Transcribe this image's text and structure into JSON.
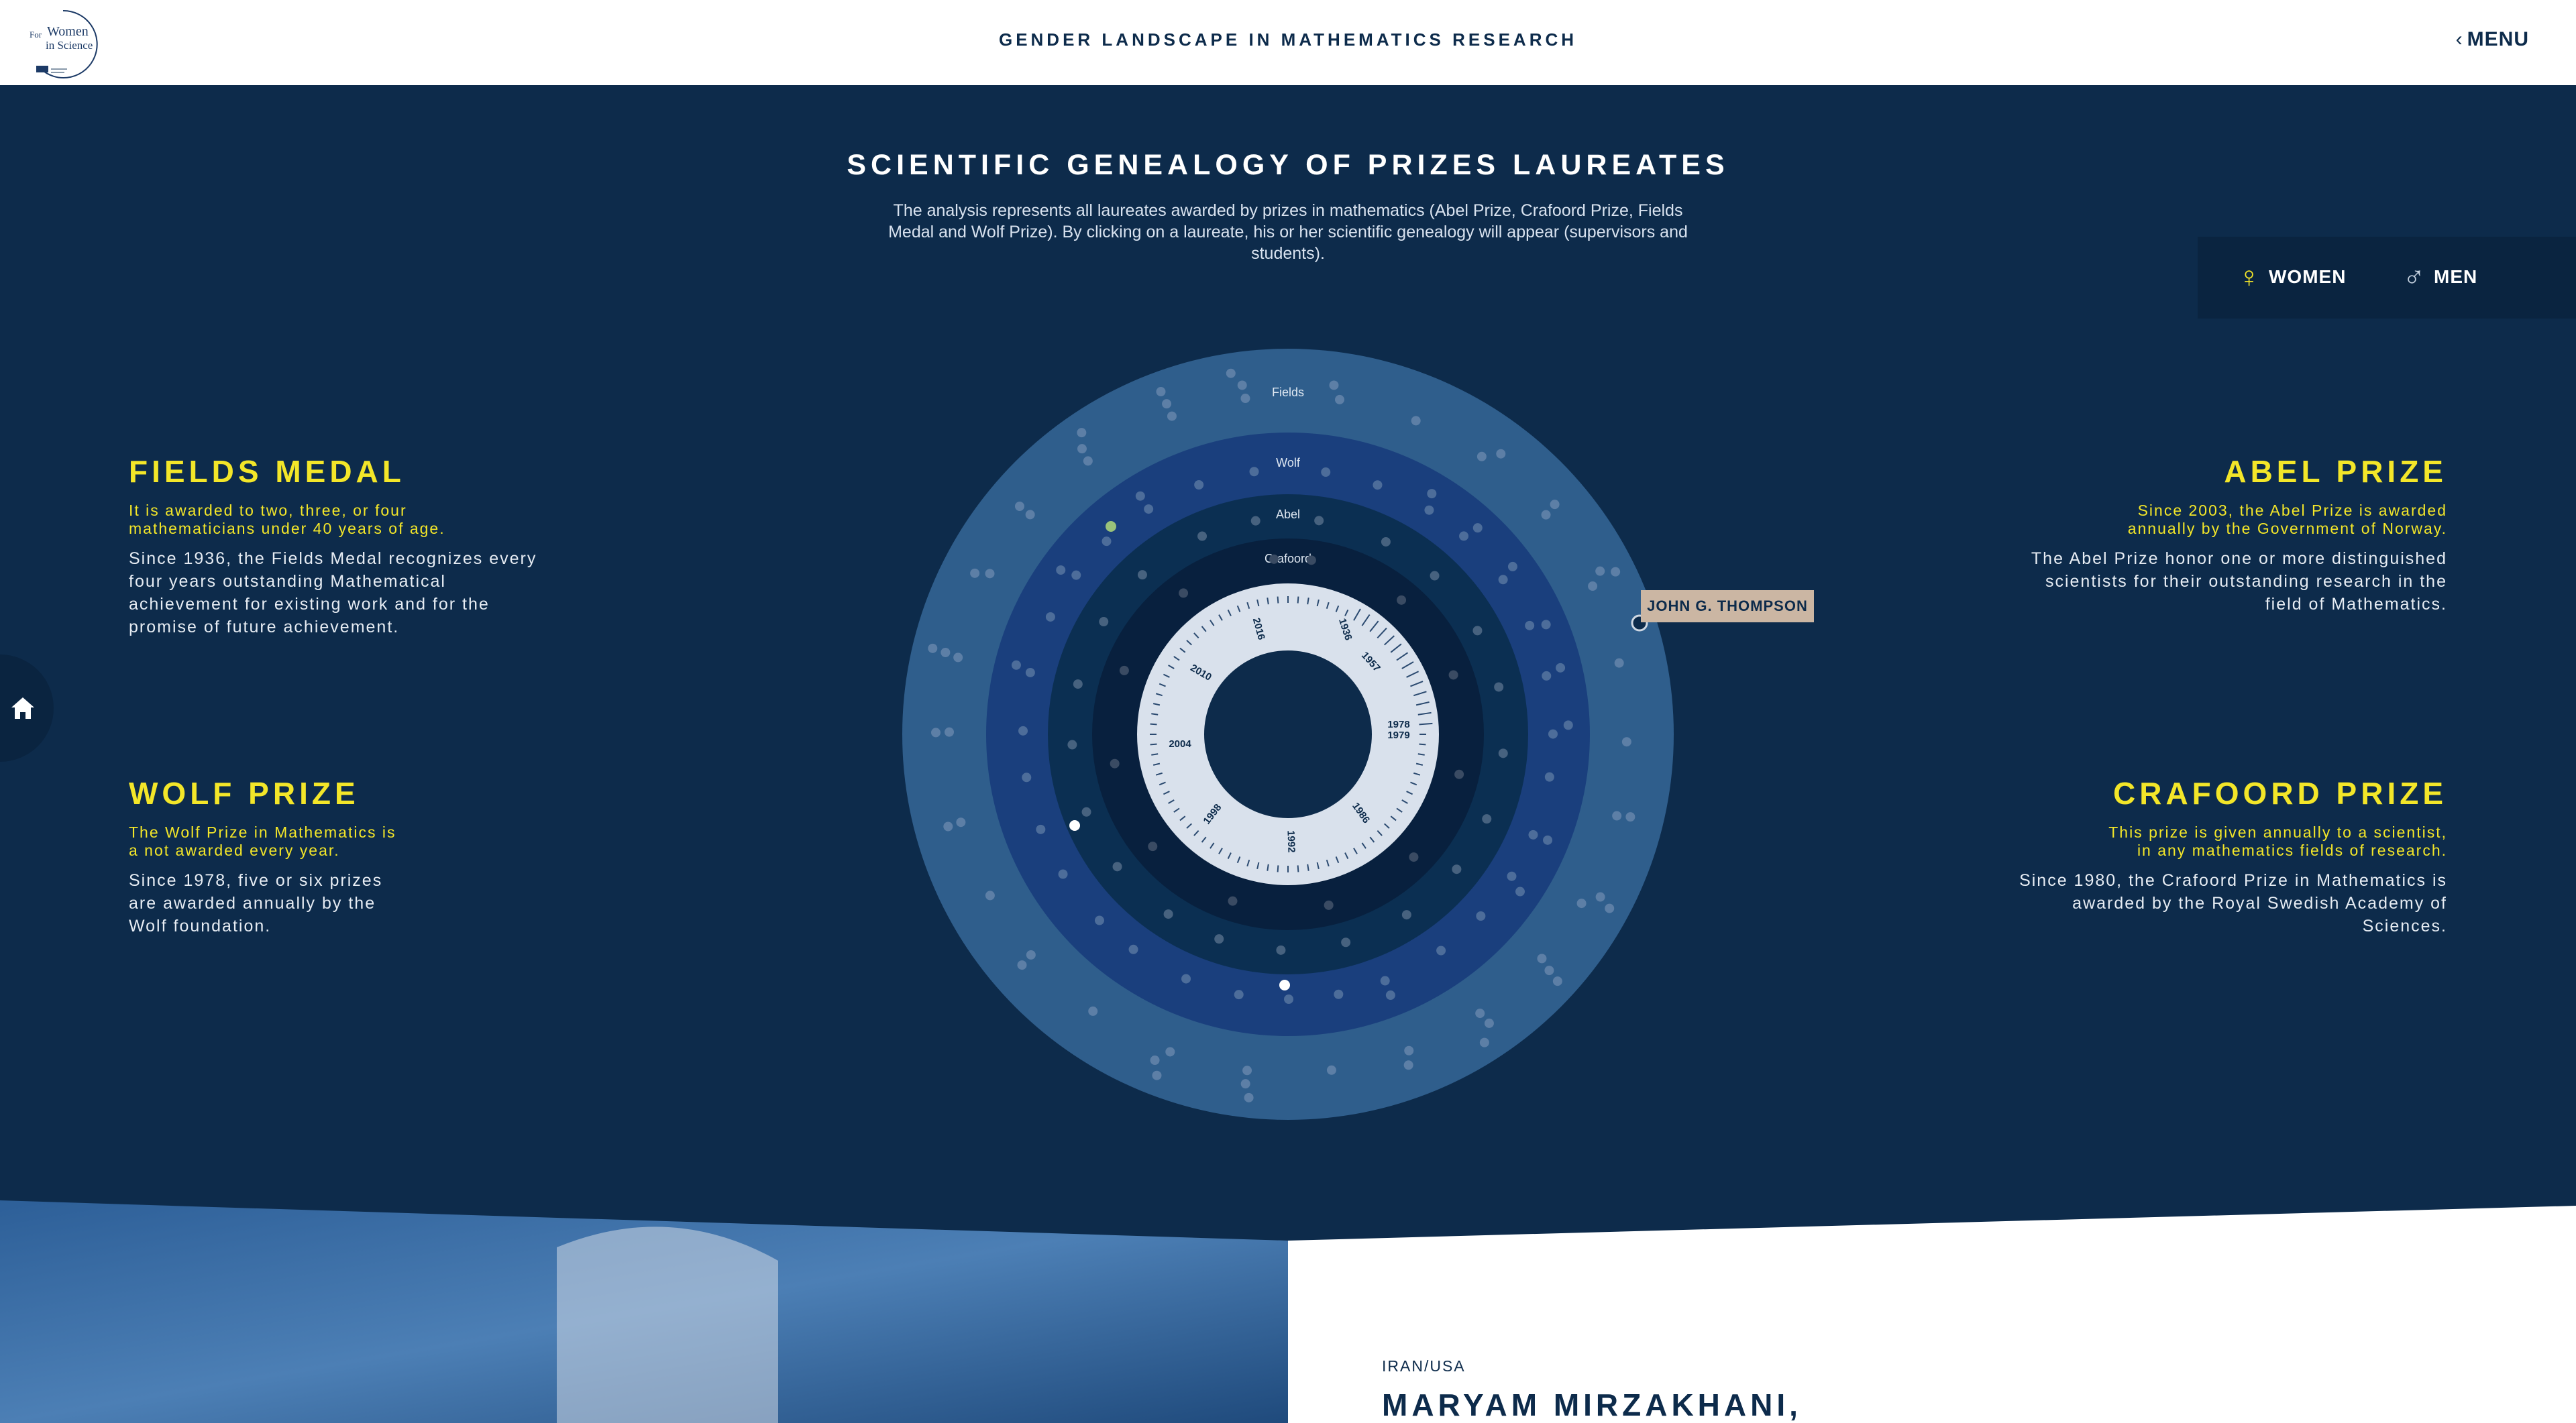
{
  "header": {
    "logo_text_1": "For",
    "logo_text_2": "Women",
    "logo_text_3": "in Science",
    "site_title": "GENDER LANDSCAPE IN MATHEMATICS RESEARCH",
    "menu_label": "MENU"
  },
  "hero": {
    "title": "SCIENTIFIC GENEALOGY OF PRIZES LAUREATES",
    "description": "The analysis represents all laureates awarded by prizes in mathematics (Abel Prize, Crafoord Prize, Fields Medal and Wolf Prize). By clicking on a laureate, his or her scientific genealogy will appear (supervisors and students)."
  },
  "legend": {
    "women_label": "WOMEN",
    "men_label": "MEN",
    "women_color": "#f3e629",
    "men_color": "#c6d2e0"
  },
  "prizes": {
    "fields": {
      "title": "FIELDS MEDAL",
      "subtitle": "It is awarded to two, three, or four mathematicians under 40 years of age.",
      "body": "Since 1936, the Fields Medal recognizes every four years outstanding Mathematical achievement for existing work and for the promise of future achievement."
    },
    "wolf": {
      "title": "WOLF PRIZE",
      "subtitle": "The Wolf Prize in Mathematics is a not awarded every year.",
      "body": "Since 1978, five or six prizes are awarded annually by the Wolf foundation."
    },
    "abel": {
      "title": "ABEL PRIZE",
      "subtitle": "Since 2003, the Abel Prize is awarded annually by the Government of Norway.",
      "body": "The Abel Prize honor one or more distinguished scientists for their outstanding research in the field of Mathematics."
    },
    "crafoord": {
      "title": "CRAFOORD PRIZE",
      "subtitle": "This prize is given annually to a scientist, in any mathematics fields of research.",
      "body": "Since 1980, the Crafoord Prize in Mathematics is awarded by the Royal Swedish Academy of Sciences."
    }
  },
  "chart": {
    "ring_labels": [
      "Fields",
      "Wolf",
      "Abel",
      "Crafoord"
    ],
    "ring_colors": [
      "#2f5e8c",
      "#1a3f7d",
      "#0b2f52",
      "#08203e"
    ],
    "dial_years": [
      "1936",
      "1957",
      "1978",
      "1979",
      "1986",
      "1992",
      "1998",
      "2004",
      "2010",
      "2016"
    ],
    "tooltip_name": "JOHN G. THOMPSON"
  },
  "bottom": {
    "country": "IRAN/USA",
    "name": "MARYAM MIRZAKHANI,"
  },
  "colors": {
    "background": "#0d2b4b",
    "accent_yellow": "#f3e629",
    "tooltip_bg": "#cbb6a3"
  }
}
